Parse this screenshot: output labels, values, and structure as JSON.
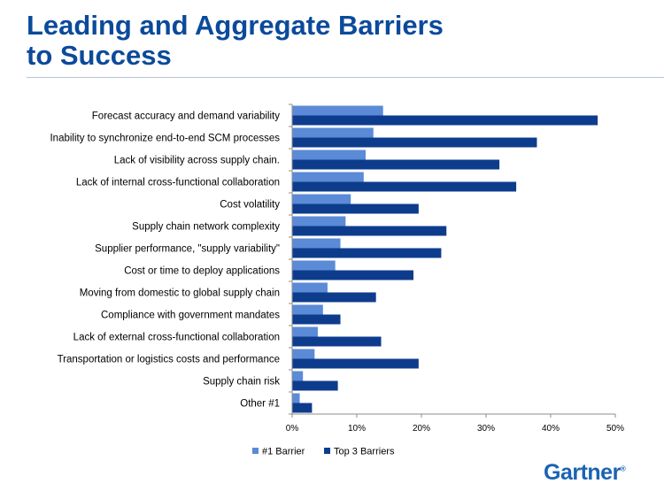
{
  "title_line1": "Leading and Aggregate Barriers",
  "title_line2": "to Success",
  "logo": "Gartner",
  "colors": {
    "title": "#0b4a9b",
    "series1": "#5b8ad6",
    "series2": "#0e3c8d",
    "logo": "#1a63b2"
  },
  "chart_data": {
    "type": "bar",
    "orientation": "horizontal",
    "categories": [
      "Forecast accuracy and demand variability",
      "Inability to synchronize end-to-end SCM processes",
      "Lack of visibility across supply chain.",
      "Lack of internal cross-functional collaboration",
      "Cost volatility",
      "Supply chain network complexity",
      "Supplier performance, \"supply variability\"",
      "Cost or time to deploy applications",
      "Moving from domestic to global supply chain",
      "Compliance with government mandates",
      "Lack of external cross-functional collaboration",
      "Transportation or logistics costs and performance",
      "Supply chain risk",
      "Other #1"
    ],
    "series": [
      {
        "name": "#1 Barrier",
        "values": [
          14,
          12.5,
          11.3,
          11,
          9,
          8.2,
          7.4,
          6.6,
          5.4,
          4.7,
          3.9,
          3.4,
          1.6,
          1.1
        ]
      },
      {
        "name": "Top 3 Barriers",
        "values": [
          47.2,
          37.8,
          32,
          34.6,
          19.5,
          23.8,
          23,
          18.7,
          12.9,
          7.4,
          13.7,
          19.5,
          7,
          3
        ]
      }
    ],
    "xlim": [
      0,
      50
    ],
    "xticks": [
      0,
      10,
      20,
      30,
      40,
      50
    ],
    "tick_format": "{v}%",
    "grid": false,
    "legend_position": "bottom"
  }
}
